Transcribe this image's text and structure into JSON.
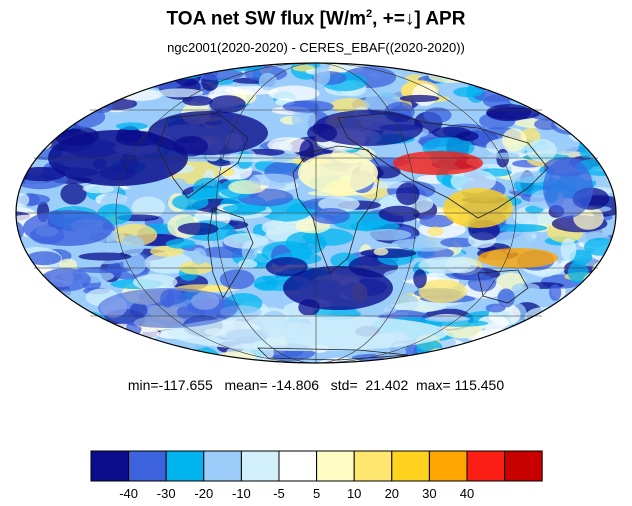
{
  "title": {
    "main": "TOA net SW flux [W/m",
    "sup": "2",
    "tail": ", +=↓]  APR"
  },
  "subtitle": "ngc2001(2020-2020) - CERES_EBAF((2020-2020))",
  "stats": {
    "min_label": "min=",
    "min": "-117.655",
    "mean_label": "mean=",
    "mean": "-14.806",
    "std_label": "std=",
    "std": "21.402",
    "max_label": "max=",
    "max": "115.450"
  },
  "map": {
    "projection": "mollweide",
    "variable": "TOA net SW flux difference",
    "month": "APR"
  },
  "colorbar": {
    "colors": [
      "#0a0e8c",
      "#3c62de",
      "#00b4f0",
      "#9ccdfa",
      "#d2f0fc",
      "#ffffff",
      "#fffcc4",
      "#ffe66e",
      "#ffd21e",
      "#ffa500",
      "#fa1e14",
      "#c80000"
    ],
    "ticks": [
      "-40",
      "-30",
      "-20",
      "-10",
      "-5",
      "5",
      "10",
      "20",
      "30",
      "40"
    ]
  }
}
